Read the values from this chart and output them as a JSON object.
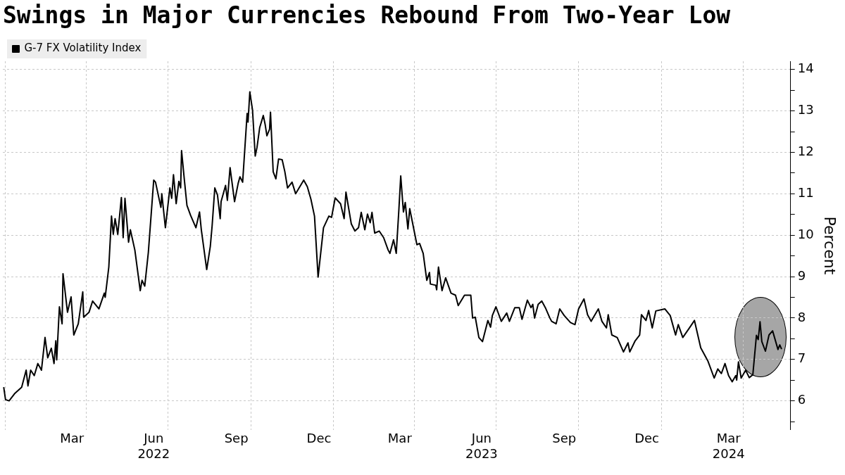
{
  "chart_data": {
    "type": "line",
    "title": "Swings in Major Currencies Rebound From Two-Year Low",
    "ylabel": "Percent",
    "legend": "top left",
    "grid": true,
    "xlim": [
      "2021-12-29",
      "2024-05-24"
    ],
    "xticks": [
      {
        "value": "2022-01-01",
        "label": null
      },
      {
        "value": "2022-03-16",
        "label": "Mar"
      },
      {
        "value": "2022-04-01",
        "label": null
      },
      {
        "value": "2022-06-15",
        "label": "Jun\n2022"
      },
      {
        "value": "2022-07-01",
        "label": null
      },
      {
        "value": "2022-09-15",
        "label": "Sep"
      },
      {
        "value": "2022-10-01",
        "label": null
      },
      {
        "value": "2022-12-16",
        "label": "Dec"
      },
      {
        "value": "2023-01-01",
        "label": null
      },
      {
        "value": "2023-03-16",
        "label": "Mar"
      },
      {
        "value": "2023-04-01",
        "label": null
      },
      {
        "value": "2023-06-15",
        "label": "Jun\n2023"
      },
      {
        "value": "2023-07-01",
        "label": null
      },
      {
        "value": "2023-09-15",
        "label": "Sep"
      },
      {
        "value": "2023-10-01",
        "label": null
      },
      {
        "value": "2023-12-16",
        "label": "Dec"
      },
      {
        "value": "2024-01-01",
        "label": null
      },
      {
        "value": "2024-03-16",
        "label": "Mar\n2024"
      },
      {
        "value": "2024-04-01",
        "label": null
      }
    ],
    "ylim": [
      5.3,
      14.2
    ],
    "yticks": [
      {
        "value": 5.5,
        "label": null
      },
      6,
      {
        "value": 6.5,
        "label": null
      },
      7,
      {
        "value": 7.5,
        "label": null
      },
      8,
      {
        "value": 8.5,
        "label": null
      },
      9,
      {
        "value": 9.5,
        "label": null
      },
      10,
      {
        "value": 10.5,
        "label": null
      },
      11,
      {
        "value": 11.5,
        "label": null
      },
      12,
      {
        "value": 12.5,
        "label": null
      },
      13,
      {
        "value": 13.5,
        "label": null
      },
      14
    ],
    "x": [
      "2021-12-30",
      "2022-01-01",
      "2022-01-05",
      "2022-01-11",
      "2022-01-19",
      "2022-01-24",
      "2022-01-26",
      "2022-01-29",
      "2022-02-02",
      "2022-02-06",
      "2022-02-10",
      "2022-02-14",
      "2022-02-17",
      "2022-02-21",
      "2022-02-24",
      "2022-02-26",
      "2022-02-27",
      "2022-03-02",
      "2022-03-05",
      "2022-03-06",
      "2022-03-11",
      "2022-03-15",
      "2022-03-18",
      "2022-03-23",
      "2022-03-28",
      "2022-03-29",
      "2022-04-04",
      "2022-04-08",
      "2022-04-15",
      "2022-04-21",
      "2022-04-22",
      "2022-04-26",
      "2022-04-29",
      "2022-05-01",
      "2022-05-03",
      "2022-05-06",
      "2022-05-10",
      "2022-05-12",
      "2022-05-14",
      "2022-05-18",
      "2022-05-20",
      "2022-05-25",
      "2022-05-31",
      "2022-06-02",
      "2022-06-05",
      "2022-06-09",
      "2022-06-15",
      "2022-06-17",
      "2022-06-23",
      "2022-06-24",
      "2022-06-28",
      "2022-07-03",
      "2022-07-05",
      "2022-07-07",
      "2022-07-10",
      "2022-07-13",
      "2022-07-15",
      "2022-07-16",
      "2022-07-19",
      "2022-07-22",
      "2022-07-26",
      "2022-08-01",
      "2022-08-05",
      "2022-08-07",
      "2022-08-13",
      "2022-08-17",
      "2022-08-19",
      "2022-08-22",
      "2022-08-25",
      "2022-08-28",
      "2022-08-29",
      "2022-09-03",
      "2022-09-05",
      "2022-09-08",
      "2022-09-13",
      "2022-09-17",
      "2022-09-19",
      "2022-09-22",
      "2022-09-27",
      "2022-09-28",
      "2022-09-30",
      "2022-10-03",
      "2022-10-06",
      "2022-10-08",
      "2022-10-11",
      "2022-10-15",
      "2022-10-17",
      "2022-10-19",
      "2022-10-22",
      "2022-10-23",
      "2022-10-26",
      "2022-10-29",
      "2022-11-01",
      "2022-11-05",
      "2022-11-08",
      "2022-11-11",
      "2022-11-16",
      "2022-11-20",
      "2022-11-29",
      "2022-12-03",
      "2022-12-07",
      "2022-12-11",
      "2022-12-15",
      "2022-12-21",
      "2022-12-27",
      "2022-12-30",
      "2023-01-03",
      "2023-01-09",
      "2023-01-13",
      "2023-01-15",
      "2023-01-21",
      "2023-01-25",
      "2023-01-29",
      "2023-02-01",
      "2023-02-05",
      "2023-02-08",
      "2023-02-11",
      "2023-02-13",
      "2023-02-16",
      "2023-02-21",
      "2023-02-26",
      "2023-03-03",
      "2023-03-05",
      "2023-03-09",
      "2023-03-12",
      "2023-03-15",
      "2023-03-17",
      "2023-03-20",
      "2023-03-22",
      "2023-03-25",
      "2023-03-27",
      "2023-04-04",
      "2023-04-07",
      "2023-04-11",
      "2023-04-15",
      "2023-04-18",
      "2023-04-19",
      "2023-04-25",
      "2023-04-26",
      "2023-04-28",
      "2023-05-02",
      "2023-05-06",
      "2023-05-12",
      "2023-05-17",
      "2023-05-20",
      "2023-05-27",
      "2023-06-03",
      "2023-06-05",
      "2023-06-08",
      "2023-06-12",
      "2023-06-16",
      "2023-06-22",
      "2023-06-25",
      "2023-06-27",
      "2023-07-01",
      "2023-07-07",
      "2023-07-13",
      "2023-07-16",
      "2023-07-22",
      "2023-07-27",
      "2023-07-30",
      "2023-08-05",
      "2023-08-09",
      "2023-08-11",
      "2023-08-13",
      "2023-08-17",
      "2023-08-21",
      "2023-08-25",
      "2023-08-30",
      "2023-09-01",
      "2023-09-06",
      "2023-09-10",
      "2023-09-15",
      "2023-09-22",
      "2023-09-27",
      "2023-10-01",
      "2023-10-07",
      "2023-10-11",
      "2023-10-15",
      "2023-10-23",
      "2023-10-27",
      "2023-11-01",
      "2023-11-03",
      "2023-11-07",
      "2023-11-13",
      "2023-11-20",
      "2023-11-25",
      "2023-11-27",
      "2023-12-03",
      "2023-12-08",
      "2023-12-10",
      "2023-12-15",
      "2023-12-18",
      "2023-12-22",
      "2023-12-26",
      "2024-01-05",
      "2024-01-11",
      "2024-01-17",
      "2024-01-20",
      "2024-01-25",
      "2024-02-02",
      "2024-02-07",
      "2024-02-14",
      "2024-02-22",
      "2024-02-29",
      "2024-03-04",
      "2024-03-08",
      "2024-03-12",
      "2024-03-16",
      "2024-03-20",
      "2024-03-24",
      "2024-03-25",
      "2024-03-27",
      "2024-03-30",
      "2024-04-04",
      "2024-04-08",
      "2024-04-12",
      "2024-04-16",
      "2024-04-18",
      "2024-04-20",
      "2024-04-22",
      "2024-04-26",
      "2024-04-30",
      "2024-05-04",
      "2024-05-10",
      "2024-05-12",
      "2024-05-14"
    ],
    "series": [
      {
        "name": "G-7 FX Volatility Index",
        "color": "#000000",
        "values": [
          6.33,
          6.03,
          6.0,
          6.17,
          6.33,
          6.74,
          6.36,
          6.74,
          6.61,
          6.9,
          6.74,
          7.53,
          7.04,
          7.27,
          6.9,
          7.45,
          6.99,
          8.27,
          7.86,
          9.07,
          8.14,
          8.51,
          7.59,
          7.86,
          8.63,
          8.02,
          8.14,
          8.41,
          8.22,
          8.6,
          8.5,
          9.23,
          10.46,
          10.02,
          10.4,
          10.02,
          10.91,
          9.94,
          10.89,
          9.83,
          10.13,
          9.64,
          8.66,
          8.91,
          8.77,
          9.58,
          11.33,
          11.28,
          10.67,
          11.0,
          10.18,
          11.14,
          10.89,
          11.46,
          10.76,
          11.3,
          11.14,
          12.04,
          11.36,
          10.72,
          10.48,
          10.18,
          10.56,
          10.13,
          9.17,
          9.73,
          10.22,
          11.14,
          10.97,
          10.4,
          10.81,
          11.2,
          10.84,
          11.63,
          10.81,
          11.25,
          11.41,
          11.28,
          12.94,
          12.73,
          13.46,
          13.02,
          11.91,
          12.12,
          12.6,
          12.89,
          12.68,
          12.4,
          12.56,
          12.97,
          11.53,
          11.36,
          11.84,
          11.82,
          11.53,
          11.14,
          11.28,
          11.0,
          11.33,
          11.17,
          10.87,
          10.46,
          8.99,
          10.18,
          10.46,
          10.43,
          10.9,
          10.76,
          10.4,
          11.04,
          10.27,
          10.1,
          10.18,
          10.55,
          10.13,
          10.51,
          10.3,
          10.55,
          10.05,
          10.1,
          9.94,
          9.64,
          9.56,
          9.89,
          9.56,
          10.64,
          11.43,
          10.56,
          10.79,
          10.15,
          10.64,
          9.77,
          9.8,
          9.56,
          8.91,
          9.1,
          8.82,
          8.79,
          8.68,
          9.23,
          8.66,
          8.97,
          8.6,
          8.55,
          8.3,
          8.55,
          8.55,
          8.0,
          8.02,
          7.53,
          7.43,
          7.94,
          7.78,
          8.06,
          8.27,
          7.92,
          8.12,
          7.92,
          8.25,
          8.25,
          7.97,
          8.43,
          8.25,
          8.33,
          8.0,
          8.33,
          8.41,
          8.25,
          8.0,
          7.92,
          7.86,
          8.22,
          8.06,
          7.89,
          7.84,
          8.22,
          8.46,
          8.08,
          7.92,
          8.22,
          7.92,
          7.76,
          8.08,
          7.59,
          7.53,
          7.18,
          7.4,
          7.18,
          7.45,
          7.59,
          8.08,
          7.94,
          8.18,
          7.76,
          8.17,
          8.22,
          8.06,
          7.59,
          7.84,
          7.53,
          7.78,
          7.94,
          7.28,
          6.96,
          6.55,
          6.77,
          6.66,
          6.9,
          6.61,
          6.46,
          6.61,
          6.5,
          6.94,
          6.55,
          6.74,
          6.56,
          6.63,
          7.58,
          7.48,
          7.91,
          7.43,
          7.2,
          7.59,
          7.69,
          7.24,
          7.35,
          7.25
        ]
      }
    ]
  }
}
